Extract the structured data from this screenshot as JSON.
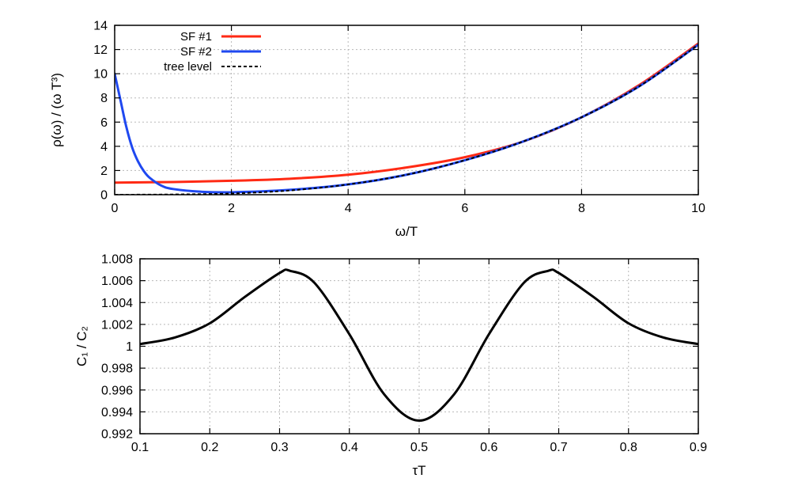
{
  "chart_data": [
    {
      "type": "line",
      "xlabel": "ω/T",
      "ylabel": "ρ(ω) / (ω T³)",
      "xlim": [
        0,
        10
      ],
      "ylim": [
        0,
        14
      ],
      "xticks": [
        "0",
        "2",
        "4",
        "6",
        "8",
        "10"
      ],
      "yticks": [
        "0",
        "2",
        "4",
        "6",
        "8",
        "10",
        "12",
        "14"
      ],
      "grid": true,
      "legend_position": "top-left",
      "series": [
        {
          "name": "SF #1",
          "color": "#ff2a14",
          "style": "solid",
          "x": [
            0,
            1,
            2,
            3,
            4,
            5,
            6,
            7,
            8,
            9,
            10
          ],
          "y": [
            1.0,
            1.05,
            1.15,
            1.32,
            1.65,
            2.25,
            3.1,
            4.4,
            6.4,
            9.1,
            12.5
          ]
        },
        {
          "name": "SF #2",
          "color": "#1f48f0",
          "style": "solid",
          "x": [
            0,
            0.1,
            0.2,
            0.3,
            0.4,
            0.5,
            0.6,
            0.8,
            1.0,
            1.5,
            2.0,
            3.0,
            4.0,
            5.0,
            6.0,
            7.0,
            8.0,
            9.0,
            10.0
          ],
          "y": [
            10.0,
            7.8,
            5.6,
            3.9,
            2.75,
            1.95,
            1.4,
            0.75,
            0.47,
            0.24,
            0.2,
            0.4,
            0.85,
            1.65,
            2.85,
            4.4,
            6.4,
            9.0,
            12.4
          ]
        },
        {
          "name": "tree level",
          "color": "#000000",
          "style": "dashed",
          "x": [
            0,
            1,
            2,
            3,
            4,
            5,
            6,
            7,
            8,
            9,
            10
          ],
          "y": [
            0.0,
            0.02,
            0.1,
            0.35,
            0.85,
            1.65,
            2.85,
            4.4,
            6.4,
            9.0,
            12.4
          ]
        }
      ]
    },
    {
      "type": "line",
      "xlabel": "τT",
      "ylabel": "C₁ / C₂",
      "xlim": [
        0.1,
        0.9
      ],
      "ylim": [
        0.992,
        1.008
      ],
      "xticks": [
        "0.1",
        "0.2",
        "0.3",
        "0.4",
        "0.5",
        "0.6",
        "0.7",
        "0.8",
        "0.9"
      ],
      "yticks": [
        "0.992",
        "0.994",
        "0.996",
        "0.998",
        "1",
        "1.002",
        "1.004",
        "1.006",
        "1.008"
      ],
      "grid": true,
      "series": [
        {
          "color": "#000000",
          "style": "solid",
          "x": [
            0.1,
            0.15,
            0.2,
            0.25,
            0.3,
            0.315,
            0.35,
            0.4,
            0.45,
            0.5,
            0.55,
            0.6,
            0.65,
            0.685,
            0.7,
            0.75,
            0.8,
            0.85,
            0.9
          ],
          "y": [
            1.0002,
            1.0008,
            1.0021,
            1.0045,
            1.0067,
            1.0069,
            1.0058,
            1.0011,
            0.9956,
            0.9932,
            0.9956,
            1.0011,
            1.0058,
            1.0069,
            1.0067,
            1.0045,
            1.0021,
            1.0008,
            1.0002
          ]
        }
      ]
    }
  ]
}
